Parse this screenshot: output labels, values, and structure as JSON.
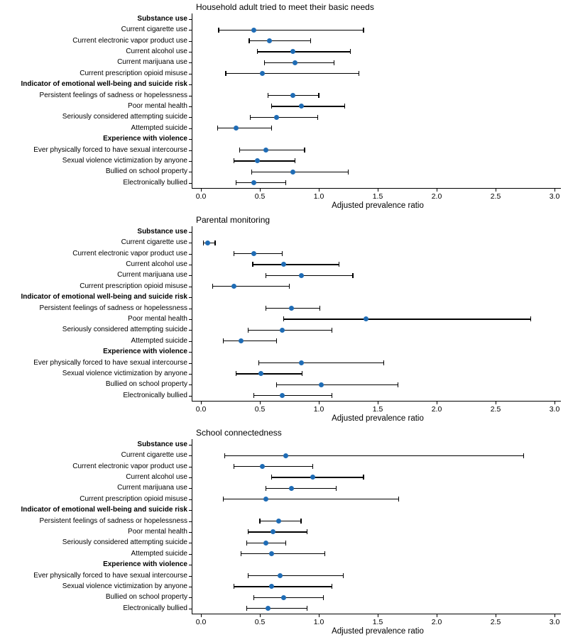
{
  "figure": {
    "xlabel": "Adjusted prevalence ratio",
    "x_ticks": [
      "0.0",
      "0.5",
      "1.0",
      "1.5",
      "2.0",
      "2.5",
      "3.0"
    ],
    "x_tick_values": [
      0,
      0.5,
      1.0,
      1.5,
      2.0,
      2.5,
      3.0
    ],
    "xlim": [
      0,
      3
    ],
    "colors": {
      "marker": "#1f6cb5",
      "line": "#000000"
    }
  },
  "chart_data": [
    {
      "type": "scatter",
      "title": "Household adult tried to meet their basic needs",
      "xlabel": "Adjusted prevalence ratio",
      "xlim": [
        0,
        3
      ],
      "rows": [
        {
          "label": "Substance use",
          "header": true
        },
        {
          "label": "Current cigarette use",
          "est": 0.45,
          "lo": 0.15,
          "hi": 1.38
        },
        {
          "label": "Current electronic vapor product use",
          "est": 0.58,
          "lo": 0.41,
          "hi": 0.93
        },
        {
          "label": "Current alcohol use",
          "est": 0.78,
          "lo": 0.48,
          "hi": 1.27
        },
        {
          "label": "Current marijuana use",
          "est": 0.8,
          "lo": 0.54,
          "hi": 1.13
        },
        {
          "label": "Current prescription opioid misuse",
          "est": 0.52,
          "lo": 0.21,
          "hi": 1.34
        },
        {
          "label": "Indicator of emotional well-being and suicide risk",
          "header": true
        },
        {
          "label": "Persistent feelings of sadness or hopelessness",
          "est": 0.78,
          "lo": 0.57,
          "hi": 1.0
        },
        {
          "label": "Poor mental health",
          "est": 0.85,
          "lo": 0.6,
          "hi": 1.22
        },
        {
          "label": "Seriously considered attempting suicide",
          "est": 0.64,
          "lo": 0.42,
          "hi": 0.99
        },
        {
          "label": "Attempted suicide",
          "est": 0.3,
          "lo": 0.14,
          "hi": 0.6
        },
        {
          "label": "Experience with violence",
          "header": true
        },
        {
          "label": "Ever physically forced to have sexual intercourse",
          "est": 0.55,
          "lo": 0.33,
          "hi": 0.88
        },
        {
          "label": "Sexual violence victimization by anyone",
          "est": 0.48,
          "lo": 0.28,
          "hi": 0.8
        },
        {
          "label": "Bullied on school property",
          "est": 0.78,
          "lo": 0.43,
          "hi": 1.25
        },
        {
          "label": "Electronically bullied",
          "est": 0.45,
          "lo": 0.3,
          "hi": 0.72
        }
      ]
    },
    {
      "type": "scatter",
      "title": "Parental monitoring",
      "xlabel": "Adjusted prevalence ratio",
      "xlim": [
        0,
        3
      ],
      "rows": [
        {
          "label": "Substance use",
          "header": true
        },
        {
          "label": "Current cigarette use",
          "est": 0.06,
          "lo": 0.02,
          "hi": 0.12
        },
        {
          "label": "Current electronic vapor product use",
          "est": 0.45,
          "lo": 0.28,
          "hi": 0.69
        },
        {
          "label": "Current alcohol use",
          "est": 0.7,
          "lo": 0.44,
          "hi": 1.17
        },
        {
          "label": "Current marijuana use",
          "est": 0.85,
          "lo": 0.55,
          "hi": 1.29
        },
        {
          "label": "Current prescription opioid misuse",
          "est": 0.28,
          "lo": 0.1,
          "hi": 0.75
        },
        {
          "label": "Indicator of emotional well-being and suicide risk",
          "header": true
        },
        {
          "label": "Persistent feelings of sadness or hopelessness",
          "est": 0.77,
          "lo": 0.55,
          "hi": 1.01
        },
        {
          "label": "Poor mental health",
          "est": 1.4,
          "lo": 0.7,
          "hi": 2.8
        },
        {
          "label": "Seriously considered attempting suicide",
          "est": 0.69,
          "lo": 0.4,
          "hi": 1.11
        },
        {
          "label": "Attempted suicide",
          "est": 0.34,
          "lo": 0.19,
          "hi": 0.64
        },
        {
          "label": "Experience with violence",
          "header": true
        },
        {
          "label": "Ever physically forced to have sexual intercourse",
          "est": 0.85,
          "lo": 0.49,
          "hi": 1.55
        },
        {
          "label": "Sexual violence victimization by anyone",
          "est": 0.51,
          "lo": 0.3,
          "hi": 0.86
        },
        {
          "label": "Bullied on school property",
          "est": 1.02,
          "lo": 0.64,
          "hi": 1.67
        },
        {
          "label": "Electronically bullied",
          "est": 0.69,
          "lo": 0.45,
          "hi": 1.11
        }
      ]
    },
    {
      "type": "scatter",
      "title": "School connectedness",
      "xlabel": "Adjusted prevalence ratio",
      "xlim": [
        0,
        3
      ],
      "rows": [
        {
          "label": "Substance use",
          "header": true
        },
        {
          "label": "Current cigarette use",
          "est": 0.72,
          "lo": 0.2,
          "hi": 2.74
        },
        {
          "label": "Current electronic vapor product use",
          "est": 0.52,
          "lo": 0.28,
          "hi": 0.95
        },
        {
          "label": "Current alcohol use",
          "est": 0.95,
          "lo": 0.6,
          "hi": 1.38
        },
        {
          "label": "Current marijuana use",
          "est": 0.77,
          "lo": 0.55,
          "hi": 1.15
        },
        {
          "label": "Current prescription opioid misuse",
          "est": 0.55,
          "lo": 0.19,
          "hi": 1.68
        },
        {
          "label": "Indicator of emotional well-being and suicide risk",
          "header": true
        },
        {
          "label": "Persistent feelings of sadness or hopelessness",
          "est": 0.66,
          "lo": 0.5,
          "hi": 0.85
        },
        {
          "label": "Poor mental health",
          "est": 0.61,
          "lo": 0.4,
          "hi": 0.9
        },
        {
          "label": "Seriously considered attempting suicide",
          "est": 0.55,
          "lo": 0.39,
          "hi": 0.72
        },
        {
          "label": "Attempted suicide",
          "est": 0.6,
          "lo": 0.34,
          "hi": 1.05
        },
        {
          "label": "Experience with violence",
          "header": true
        },
        {
          "label": "Ever physically forced to have sexual intercourse",
          "est": 0.67,
          "lo": 0.4,
          "hi": 1.21
        },
        {
          "label": "Sexual violence victimization by anyone",
          "est": 0.6,
          "lo": 0.28,
          "hi": 1.11
        },
        {
          "label": "Bullied on school property",
          "est": 0.7,
          "lo": 0.45,
          "hi": 1.04
        },
        {
          "label": "Electronically bullied",
          "est": 0.57,
          "lo": 0.39,
          "hi": 0.9
        }
      ]
    }
  ]
}
